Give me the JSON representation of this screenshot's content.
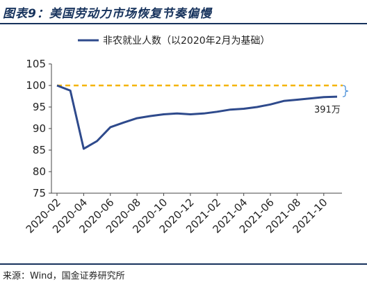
{
  "title": "图表9：美国劳动力市场恢复节奏偏慢",
  "source": "来源：Wind，国金证券研究所",
  "chart_data": {
    "type": "line",
    "legend": {
      "label": "非农就业人数（以2020年2月为基础）",
      "placement": "top"
    },
    "x_ticks": [
      "2020-02",
      "2020-04",
      "2020-06",
      "2020-08",
      "2020-10",
      "2020-12",
      "2021-02",
      "2021-04",
      "2021-06",
      "2021-08",
      "2021-10"
    ],
    "x": [
      "2020-02",
      "2020-03",
      "2020-04",
      "2020-05",
      "2020-06",
      "2020-07",
      "2020-08",
      "2020-09",
      "2020-10",
      "2020-11",
      "2020-12",
      "2021-01",
      "2021-02",
      "2021-03",
      "2021-04",
      "2021-05",
      "2021-06",
      "2021-07",
      "2021-08",
      "2021-09",
      "2021-10",
      "2021-11"
    ],
    "series": [
      {
        "name": "非农就业人数（以2020年2月为基础）",
        "color": "#2e4a8c",
        "values": [
          100,
          98.8,
          85.3,
          87.1,
          90.3,
          91.4,
          92.4,
          92.9,
          93.3,
          93.5,
          93.3,
          93.5,
          93.9,
          94.4,
          94.6,
          95.0,
          95.6,
          96.4,
          96.7,
          97.0,
          97.3,
          97.4
        ]
      }
    ],
    "reference_line": {
      "value": 100,
      "color": "#f5b400",
      "style": "dashed"
    },
    "ylim": [
      75,
      105
    ],
    "y_ticks": [
      75,
      80,
      85,
      90,
      95,
      100,
      105
    ],
    "annotation": "391万",
    "bracket_color": "#4a90d9",
    "grid": false
  }
}
